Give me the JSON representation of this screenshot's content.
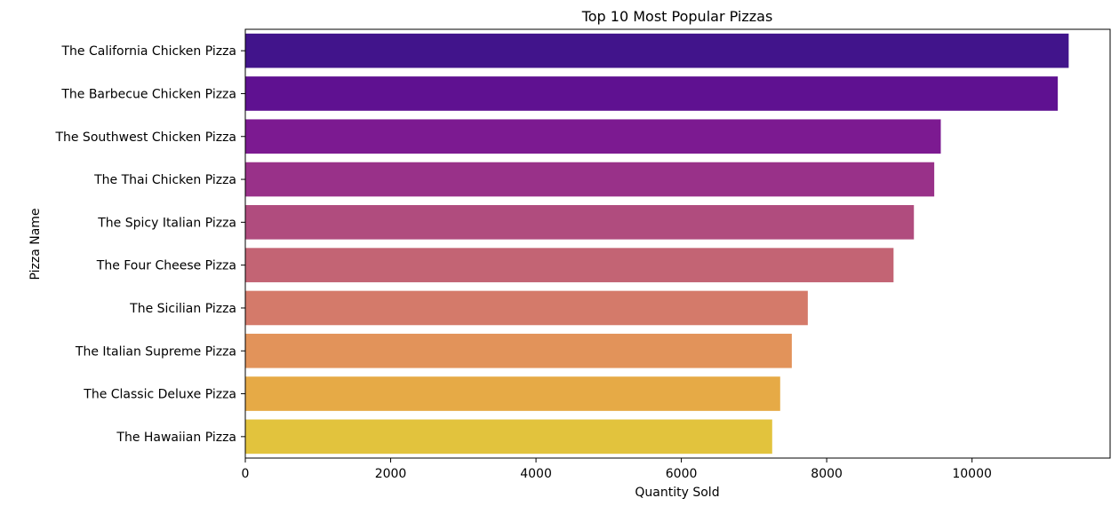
{
  "chart_data": {
    "type": "bar",
    "orientation": "horizontal",
    "title": "Top 10 Most Popular Pizzas",
    "xlabel": "Quantity Sold",
    "ylabel": "Pizza Name",
    "categories": [
      "The California Chicken Pizza",
      "The Barbecue Chicken Pizza",
      "The Southwest Chicken Pizza",
      "The Thai Chicken Pizza",
      "The Spicy Italian Pizza",
      "The Four Cheese Pizza",
      "The Sicilian Pizza",
      "The Italian Supreme Pizza",
      "The Classic Deluxe Pizza",
      "The Hawaiian Pizza"
    ],
    "values": [
      11330,
      11180,
      9570,
      9480,
      9200,
      8920,
      7740,
      7520,
      7360,
      7250
    ],
    "colors": [
      "#41148b",
      "#5f1191",
      "#7c1a91",
      "#993189",
      "#b04c7e",
      "#c36474",
      "#d47a6a",
      "#e2935a",
      "#e6aa46",
      "#e2c33d"
    ],
    "xticks": [
      0,
      2000,
      4000,
      6000,
      8000,
      10000
    ],
    "xlim": [
      0,
      11900
    ],
    "grid": false,
    "legend": "none"
  }
}
